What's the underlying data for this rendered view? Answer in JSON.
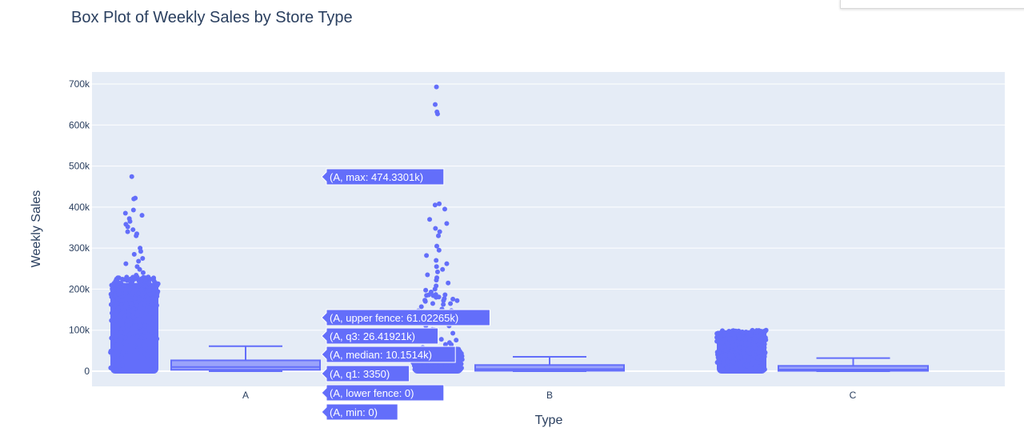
{
  "chart_data": {
    "type": "box",
    "title": "Box Plot of Weekly Sales by Store Type",
    "xlabel": "Type",
    "ylabel": "Weekly Sales",
    "categories": [
      "A",
      "B",
      "C"
    ],
    "ylim": [
      -40000,
      720000
    ],
    "yticks": [
      0,
      100000,
      200000,
      300000,
      400000,
      500000,
      600000,
      700000
    ],
    "ytick_labels": [
      "0",
      "100k",
      "200k",
      "300k",
      "400k",
      "500k",
      "600k",
      "700k"
    ],
    "grid": true,
    "points": "all",
    "boxes": [
      {
        "category": "A",
        "min": 0,
        "lower_fence": 0,
        "q1": 3350,
        "median": 10151.4,
        "q3": 26419.21,
        "upper_fence": 61022.65,
        "max": 474330.1,
        "outliers": [
          474330,
          422000,
          420000,
          393000,
          385000,
          380000,
          372000,
          365000,
          358000,
          352000,
          345000,
          340000,
          335000,
          330000,
          300000,
          292000,
          285000,
          275000,
          268000,
          262000,
          255000,
          248000,
          240000,
          234000,
          228000
        ]
      },
      {
        "category": "B",
        "min": 0,
        "lower_fence": 0,
        "q1": 1000,
        "median": 5000,
        "q3": 15000,
        "upper_fence": 35000,
        "max": 693000,
        "outliers": [
          693000,
          650000,
          632000,
          627000,
          408000,
          405000,
          395000,
          370000,
          360000,
          348000,
          340000,
          330000,
          305000,
          295000,
          282000,
          270000,
          262000,
          255000,
          248000,
          242000,
          235000,
          228000,
          222000,
          215000,
          208000,
          200000,
          193000,
          186000,
          180000,
          172000,
          165000
        ]
      },
      {
        "category": "C",
        "min": 0,
        "lower_fence": 0,
        "q1": 800,
        "median": 4000,
        "q3": 13000,
        "upper_fence": 32000,
        "max": 112000,
        "outliers": []
      }
    ],
    "hover_labels": [
      "(A, max: 474.3301k)",
      "(A, upper fence: 61.02265k)",
      "(A, q3: 26.41921k)",
      "(A, median: 10.1514k)",
      "(A, q1: 3350)",
      "(A, lower fence: 0)",
      "(A, min: 0)"
    ],
    "colors": {
      "marker": "#636efa",
      "box_fill": "#9aa3fb",
      "grid": "#ffffff",
      "plot_bg": "#e5ecf6",
      "text": "#2a3f5f"
    }
  }
}
